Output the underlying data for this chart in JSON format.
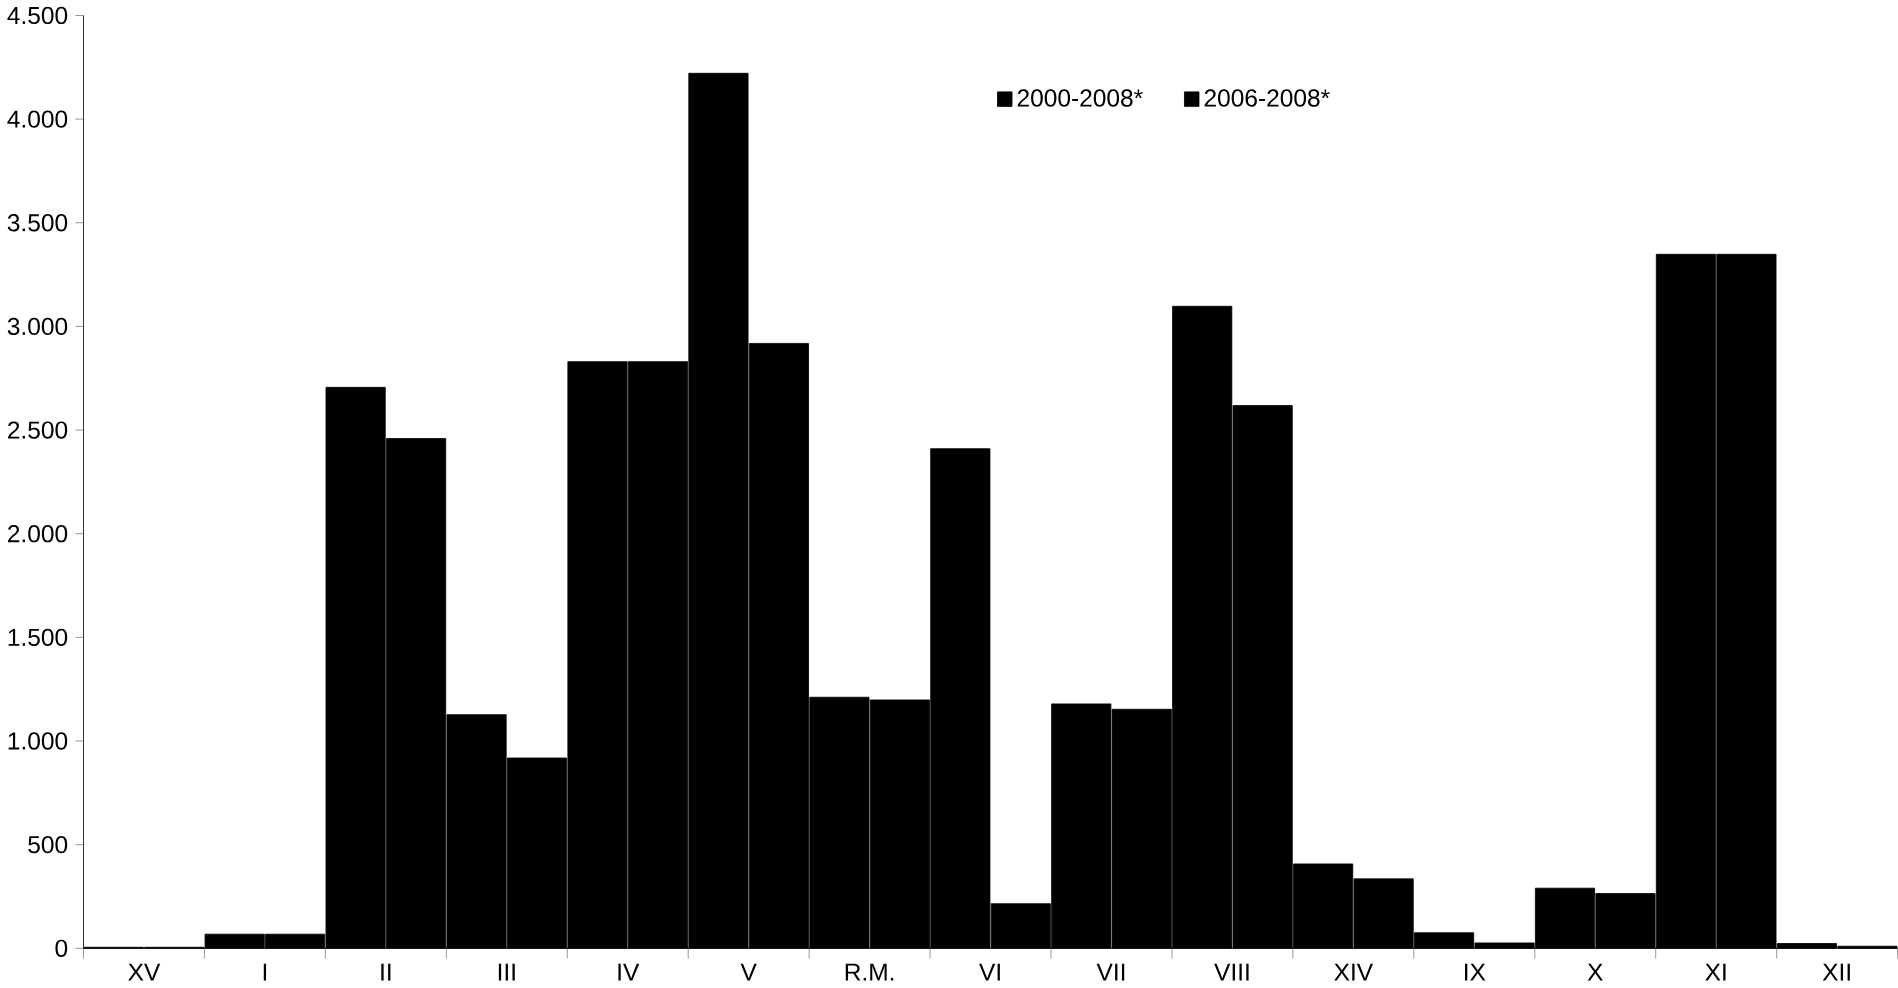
{
  "chart_data": {
    "type": "bar",
    "categories": [
      "XV",
      "I",
      "II",
      "III",
      "IV",
      "V",
      "R.M.",
      "VI",
      "VII",
      "VIII",
      "XIV",
      "IX",
      "X",
      "XI",
      "XII"
    ],
    "series": [
      {
        "name": "2000-2008*",
        "color": "#000000",
        "values": [
          5,
          68,
          2706,
          1127,
          2830,
          4221,
          1211,
          2410,
          1179,
          3097,
          407,
          75,
          290,
          3348,
          23
        ]
      },
      {
        "name": "2006-2008*",
        "color": "#000000",
        "values": [
          5,
          68,
          2459,
          918,
          2830,
          2918,
          1198,
          215,
          1153,
          2618,
          335,
          26,
          264,
          3348,
          10
        ]
      }
    ],
    "ylim": [
      0,
      4500
    ],
    "yticks": [
      0,
      500,
      {
        "value": 1000,
        "label": "1.000"
      },
      {
        "value": 1500,
        "label": "1.500"
      },
      {
        "value": 2000,
        "label": "2.000"
      },
      {
        "value": 2500,
        "label": "2.500"
      },
      {
        "value": 3000,
        "label": "3.000"
      },
      {
        "value": 3500,
        "label": "3.500"
      },
      {
        "value": 4000,
        "label": "4.000"
      },
      {
        "value": 4500,
        "label": "4.500"
      }
    ],
    "legend": "top right",
    "grid": false
  }
}
